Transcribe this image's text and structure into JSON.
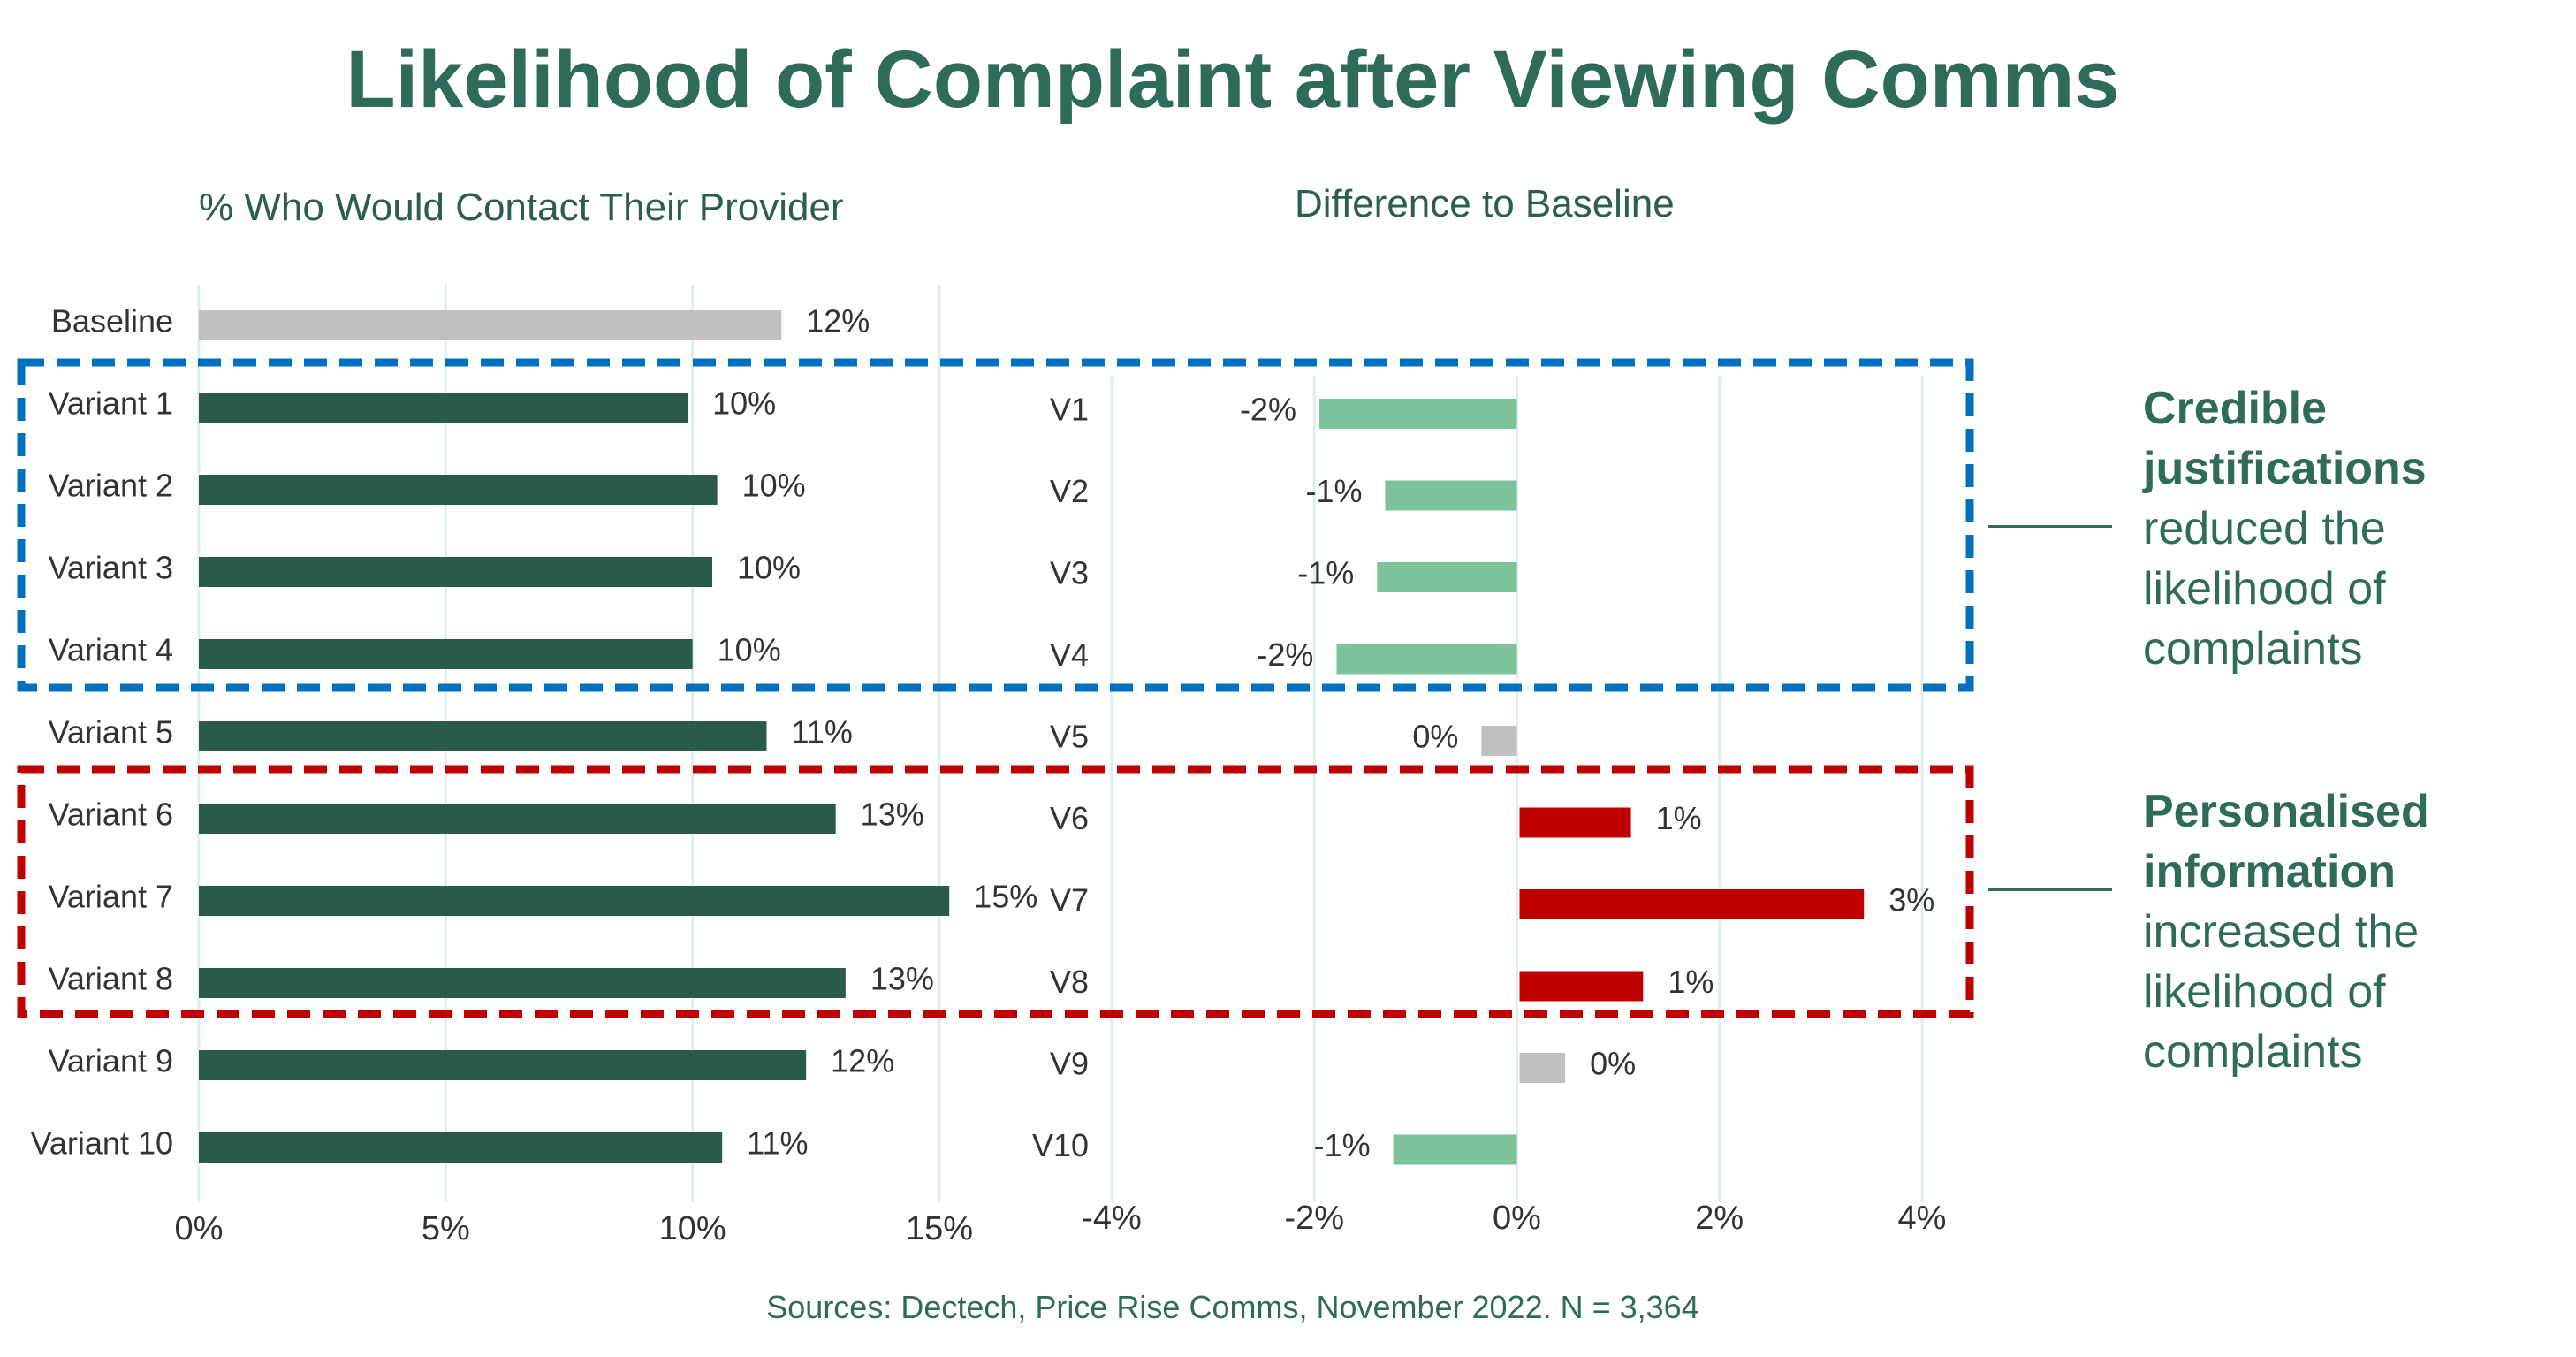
{
  "title": "Likelihood of Complaint after Viewing Comms",
  "source": "Sources: Dectech, Price Rise Comms, November 2022. N = 3,364",
  "colors": {
    "title": "#2f6b5a",
    "primary_bar": "#2a5a4b",
    "baseline_bar": "#c0c0c0",
    "negative_diff": "#7cc29a",
    "positive_diff": "#c00000",
    "neutral_diff": "#c0c0c0",
    "blue_box": "#0070c0",
    "red_box": "#c00000",
    "grid": "#dcefe8"
  },
  "chart_data": [
    {
      "type": "bar",
      "orientation": "horizontal",
      "title": "% Who Would Contact Their Provider",
      "categories": [
        "Baseline",
        "Variant 1",
        "Variant 2",
        "Variant 3",
        "Variant 4",
        "Variant 5",
        "Variant 6",
        "Variant 7",
        "Variant 8",
        "Variant 9",
        "Variant 10"
      ],
      "values": [
        11.8,
        9.9,
        10.5,
        10.4,
        10.0,
        11.5,
        12.9,
        15.2,
        13.1,
        12.3,
        10.6
      ],
      "labels": [
        "12%",
        "10%",
        "10%",
        "10%",
        "10%",
        "11%",
        "13%",
        "15%",
        "13%",
        "12%",
        "11%"
      ],
      "xlim": [
        0,
        15
      ],
      "xticks": [
        0,
        5,
        10,
        15
      ],
      "xtick_labels": [
        "0%",
        "5%",
        "10%",
        "15%"
      ],
      "grid": true
    },
    {
      "type": "bar",
      "orientation": "horizontal",
      "title": "Difference to Baseline",
      "categories": [
        "V1",
        "V2",
        "V3",
        "V4",
        "V5",
        "V6",
        "V7",
        "V8",
        "V9",
        "V10"
      ],
      "values": [
        -1.95,
        -1.3,
        -1.38,
        -1.78,
        -0.35,
        1.1,
        3.4,
        1.22,
        0.45,
        -1.22
      ],
      "labels": [
        "-2%",
        "-1%",
        "-1%",
        "-2%",
        "0%",
        "1%",
        "3%",
        "1%",
        "0%",
        "-1%"
      ],
      "xlim": [
        -4,
        4
      ],
      "xticks": [
        -4,
        -2,
        0,
        2,
        4
      ],
      "xtick_labels": [
        "-4%",
        "-2%",
        "0%",
        "2%",
        "4%"
      ],
      "grid": true
    }
  ],
  "annotations": [
    {
      "bold": "Credible justifications",
      "text": "reduced the likelihood of complaints",
      "box": "blue",
      "rows": [
        "Variant 1",
        "Variant 4"
      ]
    },
    {
      "bold": "Personalised information",
      "text": "increased the likelihood of complaints",
      "box": "red",
      "rows": [
        "Variant 6",
        "Variant 8"
      ]
    }
  ]
}
